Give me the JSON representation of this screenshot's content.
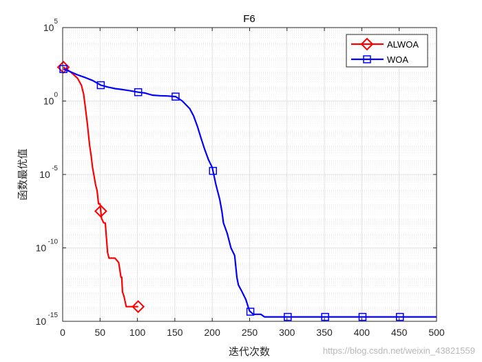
{
  "chart_data": {
    "type": "line",
    "title": "F6",
    "xlabel": "迭代次数",
    "ylabel": "函数最优值",
    "xlim": [
      0,
      500
    ],
    "ylim": [
      1e-15,
      100000
    ],
    "yscale": "log",
    "grid": true,
    "legend_position": "top-right",
    "x_ticks": [
      "0",
      "50",
      "100",
      "150",
      "200",
      "250",
      "300",
      "350",
      "400",
      "450",
      "500"
    ],
    "y_ticks": [
      {
        "base": "10",
        "exp": "5"
      },
      {
        "base": "10",
        "exp": "0"
      },
      {
        "base": "10",
        "exp": "-5"
      },
      {
        "base": "10",
        "exp": "-10"
      },
      {
        "base": "10",
        "exp": "-15"
      }
    ],
    "series": [
      {
        "name": "ALWOA",
        "color": "#ff0000",
        "marker": "diamond",
        "marker_x": [
          1,
          51,
          101
        ],
        "x": [
          1,
          5,
          10,
          15,
          20,
          25,
          28,
          30,
          33,
          36,
          38,
          40,
          42,
          44,
          46,
          48,
          50,
          52,
          55,
          57,
          60,
          62,
          65,
          70,
          75,
          78,
          79,
          80,
          82,
          85,
          90,
          95,
          101
        ],
        "y": [
          200,
          150,
          100,
          60,
          35,
          12,
          3,
          0.5,
          0.03,
          0.001,
          0.0002,
          3e-05,
          8e-06,
          2e-06,
          8e-07,
          1e-07,
          1e-07,
          1e-08,
          5e-09,
          5e-09,
          5e-11,
          2e-11,
          2e-11,
          2e-11,
          1e-11,
          1e-12,
          1e-12,
          1e-13,
          5e-14,
          1e-14,
          1e-14,
          1e-14,
          1e-14
        ]
      },
      {
        "name": "WOA",
        "color": "#0000ff",
        "marker": "square",
        "marker_x": [
          1,
          51,
          101,
          151,
          201,
          251,
          301,
          351,
          401,
          451
        ],
        "x": [
          1,
          10,
          20,
          30,
          40,
          51,
          60,
          70,
          80,
          90,
          101,
          110,
          120,
          130,
          140,
          151,
          160,
          170,
          175,
          180,
          185,
          190,
          195,
          200,
          205,
          210,
          213,
          215,
          220,
          225,
          230,
          233,
          235,
          240,
          245,
          248,
          250,
          255,
          260,
          265,
          270,
          275,
          280,
          300,
          350,
          400,
          450,
          500
        ],
        "y": [
          150,
          100,
          60,
          40,
          25,
          12,
          9,
          7,
          6,
          5,
          4,
          3.5,
          2.5,
          2.3,
          2.2,
          2,
          1,
          0.3,
          0.1,
          0.02,
          0.003,
          0.0005,
          0.0001,
          3e-05,
          2e-06,
          2e-07,
          3e-08,
          5e-09,
          1e-09,
          1e-10,
          3e-11,
          1e-12,
          3e-13,
          1e-13,
          3e-14,
          1e-14,
          5e-15,
          3e-15,
          3e-15,
          3e-15,
          2e-15,
          2e-15,
          2e-15,
          2e-15,
          2e-15,
          2e-15,
          2e-15,
          2e-15
        ]
      }
    ]
  },
  "watermark": "https://blog.csdn.net/weixin_43821559"
}
